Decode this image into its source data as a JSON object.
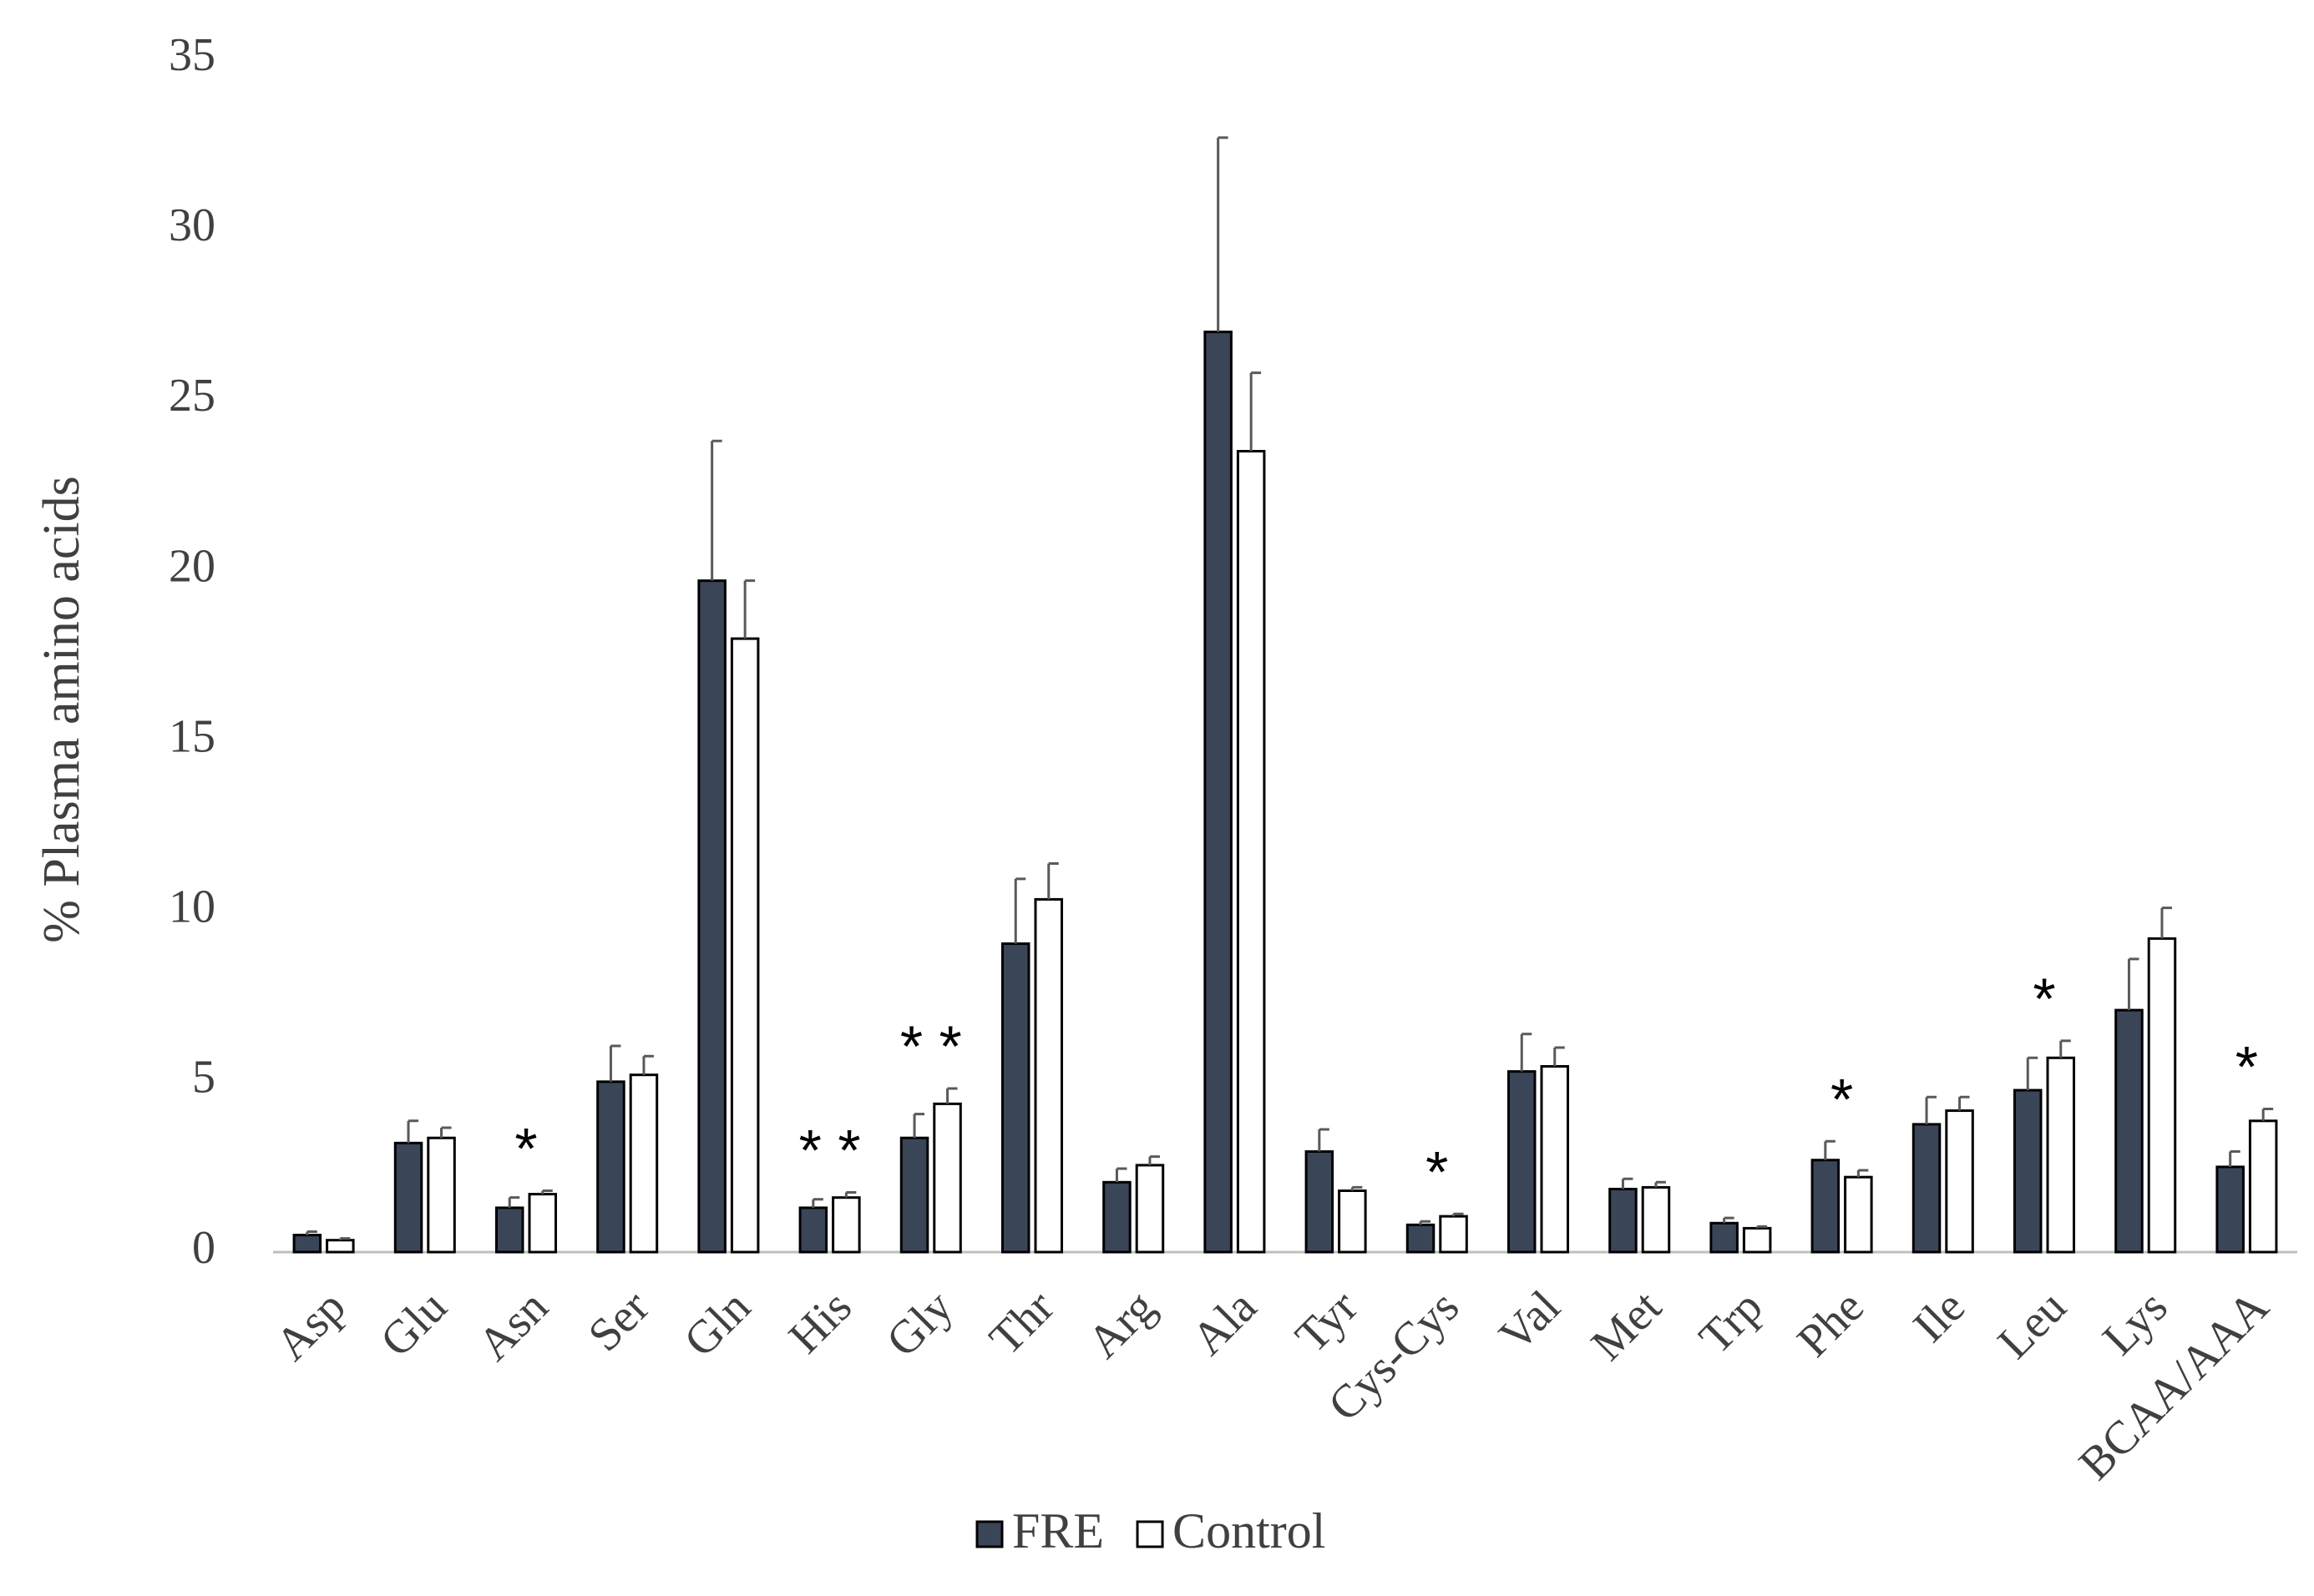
{
  "chart_data": {
    "type": "bar",
    "y_label": "% Plasma amino acids",
    "categories": [
      "Asp",
      "Glu",
      "Asn",
      "Ser",
      "Gln",
      "His",
      "Gly",
      "Thr",
      "Arg",
      "Ala",
      "Tyr",
      "Cys-Cys",
      "Val",
      "Met",
      "Trp",
      "Phe",
      "Ile",
      "Leu",
      "Lys",
      "BCAA/AAA"
    ],
    "series": [
      {
        "name": "FRE",
        "color": "#3b4558",
        "values": [
          0.5,
          3.2,
          1.3,
          5.0,
          19.7,
          1.3,
          3.35,
          9.05,
          2.05,
          27.0,
          2.95,
          0.8,
          5.3,
          1.85,
          0.85,
          2.7,
          3.75,
          4.75,
          7.1,
          2.5
        ],
        "errors": [
          0.1,
          0.65,
          0.3,
          1.05,
          4.1,
          0.25,
          0.7,
          1.9,
          0.4,
          5.7,
          0.65,
          0.1,
          1.1,
          0.3,
          0.15,
          0.55,
          0.8,
          0.95,
          1.5,
          0.45
        ]
      },
      {
        "name": "Control",
        "color": "#ffffff",
        "values": [
          0.35,
          3.35,
          1.7,
          5.2,
          18.0,
          1.6,
          4.35,
          10.35,
          2.55,
          23.5,
          1.8,
          1.05,
          5.45,
          1.9,
          0.7,
          2.2,
          4.15,
          5.7,
          9.2,
          3.85
        ],
        "errors": [
          0.05,
          0.3,
          0.1,
          0.55,
          1.7,
          0.15,
          0.45,
          1.05,
          0.25,
          2.3,
          0.1,
          0.07,
          0.55,
          0.15,
          0.05,
          0.2,
          0.4,
          0.5,
          0.9,
          0.35
        ]
      }
    ],
    "significance": [
      null,
      null,
      "*",
      null,
      null,
      "* *",
      "* *",
      null,
      null,
      null,
      null,
      "*",
      null,
      null,
      null,
      "*",
      null,
      "*",
      null,
      "*"
    ],
    "ylim": [
      0,
      35
    ],
    "yticks": [
      0,
      5,
      10,
      15,
      20,
      25,
      30,
      35
    ],
    "grid": false,
    "legend": "bottom"
  }
}
